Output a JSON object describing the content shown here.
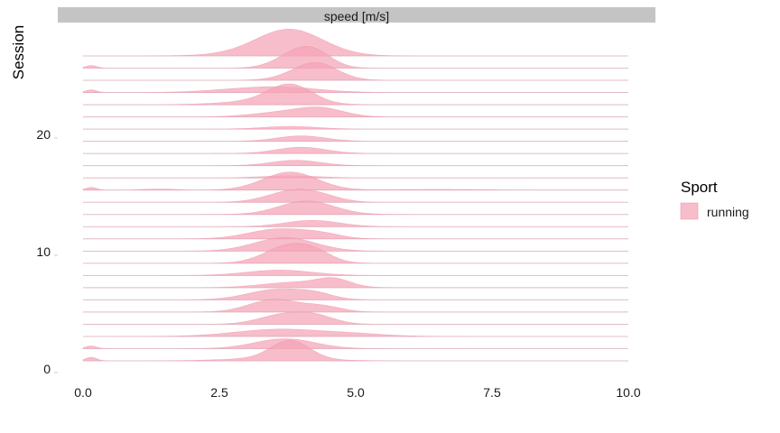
{
  "chart_data": {
    "type": "ridgeline",
    "facet_strip": "speed [m/s]",
    "ylabel": "Session",
    "xlim": [
      -0.4,
      10.5
    ],
    "x_ticks": [
      0,
      2.5,
      5,
      7.5,
      10
    ],
    "x_tick_labels": [
      "0.0",
      "2.5",
      "5.0",
      "7.5",
      "10.0"
    ],
    "y_ticks": [
      0,
      10,
      20
    ],
    "y_tick_labels": [
      "0",
      "10",
      "20"
    ],
    "grid": false,
    "fill_color": "#f4a3b5",
    "fill_opacity": 0.72,
    "baseline_color": "#d9d9d9",
    "legend": {
      "title": "Sport",
      "items": [
        {
          "label": "running",
          "color": "#f4a3b5"
        }
      ],
      "position": "right"
    },
    "sessions": [
      {
        "session": 1,
        "modes": [
          [
            0.15,
            0.1,
            0.2
          ],
          [
            3.8,
            0.35,
            1.0
          ],
          [
            3.5,
            0.8,
            0.15
          ]
        ]
      },
      {
        "session": 2,
        "modes": [
          [
            0.15,
            0.1,
            0.15
          ],
          [
            3.7,
            0.55,
            0.55
          ]
        ]
      },
      {
        "session": 3,
        "modes": [
          [
            3.6,
            0.8,
            0.4
          ],
          [
            5.0,
            0.6,
            0.12
          ]
        ]
      },
      {
        "session": 4,
        "modes": [
          [
            3.7,
            0.45,
            0.55
          ],
          [
            4.3,
            0.35,
            0.35
          ]
        ]
      },
      {
        "session": 5,
        "modes": [
          [
            3.5,
            0.45,
            0.7
          ],
          [
            4.4,
            0.35,
            0.3
          ]
        ]
      },
      {
        "session": 6,
        "modes": [
          [
            3.6,
            0.55,
            0.6
          ],
          [
            4.3,
            0.3,
            0.2
          ]
        ]
      },
      {
        "session": 7,
        "modes": [
          [
            3.9,
            0.6,
            0.3
          ],
          [
            4.6,
            0.3,
            0.4
          ]
        ]
      },
      {
        "session": 8,
        "modes": [
          [
            3.6,
            0.6,
            0.3
          ]
        ]
      },
      {
        "session": 9,
        "modes": [
          [
            3.8,
            0.45,
            1.0
          ],
          [
            4.3,
            0.3,
            0.3
          ]
        ]
      },
      {
        "session": 10,
        "modes": [
          [
            3.7,
            0.55,
            0.75
          ]
        ]
      },
      {
        "session": 11,
        "modes": [
          [
            3.6,
            0.55,
            0.55
          ],
          [
            4.4,
            0.35,
            0.2
          ]
        ]
      },
      {
        "session": 12,
        "modes": [
          [
            4.2,
            0.5,
            0.35
          ]
        ]
      },
      {
        "session": 13,
        "modes": [
          [
            4.1,
            0.5,
            0.75
          ]
        ]
      },
      {
        "session": 14,
        "modes": [
          [
            3.8,
            0.45,
            0.55
          ],
          [
            4.3,
            0.4,
            0.3
          ]
        ]
      },
      {
        "session": 15,
        "modes": [
          [
            3.8,
            0.5,
            1.0
          ],
          [
            0.15,
            0.1,
            0.15
          ],
          [
            1.4,
            0.3,
            0.06
          ],
          [
            6.5,
            0.8,
            0.04
          ]
        ]
      },
      {
        "session": 16,
        "modes": [
          [
            3.8,
            0.5,
            0.12
          ]
        ]
      },
      {
        "session": 17,
        "modes": [
          [
            3.9,
            0.45,
            0.3
          ]
        ]
      },
      {
        "session": 18,
        "modes": [
          [
            4.0,
            0.45,
            0.35
          ]
        ]
      },
      {
        "session": 19,
        "modes": [
          [
            4.0,
            0.45,
            0.3
          ]
        ]
      },
      {
        "session": 20,
        "modes": [
          [
            3.8,
            0.5,
            0.15
          ]
        ]
      },
      {
        "session": 21,
        "modes": [
          [
            3.8,
            0.6,
            0.3
          ],
          [
            4.4,
            0.4,
            0.35
          ]
        ]
      },
      {
        "session": 22,
        "modes": [
          [
            3.8,
            0.4,
            1.0
          ],
          [
            3.3,
            0.7,
            0.2
          ]
        ]
      },
      {
        "session": 23,
        "modes": [
          [
            0.15,
            0.1,
            0.15
          ],
          [
            3.6,
            0.7,
            0.3
          ],
          [
            2.6,
            0.6,
            0.08
          ]
        ]
      },
      {
        "session": 24,
        "modes": [
          [
            4.2,
            0.45,
            0.6
          ],
          [
            4.3,
            0.35,
            0.4
          ]
        ]
      },
      {
        "session": 25,
        "modes": [
          [
            4.0,
            0.4,
            1.0
          ],
          [
            4.3,
            0.3,
            0.3
          ],
          [
            0.15,
            0.1,
            0.15
          ]
        ]
      },
      {
        "session": 26,
        "modes": [
          [
            3.8,
            0.6,
            1.3
          ],
          [
            3.5,
            0.8,
            0.2
          ]
        ]
      }
    ]
  }
}
